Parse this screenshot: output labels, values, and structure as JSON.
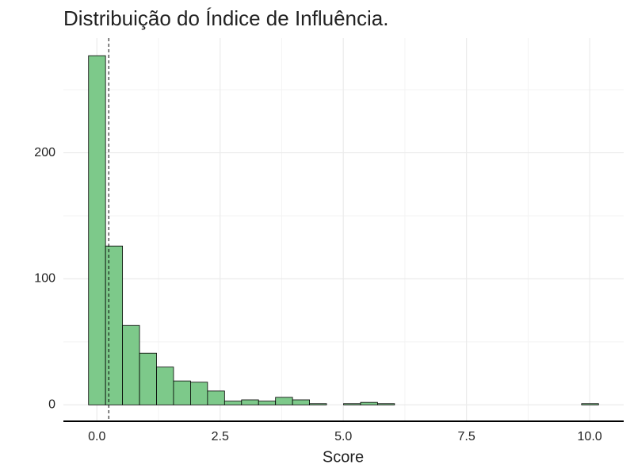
{
  "chart_data": {
    "type": "histogram",
    "title": "Distribuição do Índice de Influência.",
    "x_label": "Score",
    "bins": [
      -0.17,
      0.175,
      0.52,
      0.865,
      1.21,
      1.555,
      1.9,
      2.245,
      2.59,
      2.935,
      3.28,
      3.625,
      3.97,
      4.315,
      4.66,
      5.005,
      5.35,
      5.695,
      6.04,
      6.385,
      6.73,
      7.075,
      7.42,
      7.765,
      8.11,
      8.455,
      8.8,
      9.145,
      9.49,
      9.835,
      10.18
    ],
    "values": [
      277,
      126,
      63,
      41,
      30,
      19,
      18,
      11,
      3,
      4,
      3,
      6,
      4,
      1,
      0,
      1,
      2,
      1,
      0,
      0,
      0,
      0,
      0,
      0,
      0,
      0,
      0,
      0,
      0,
      1
    ],
    "color": "#7dc98a",
    "edge_color": "#000000",
    "vline": 0.24,
    "xlim": [
      -0.68,
      10.69
    ],
    "ylim": [
      -13,
      291
    ],
    "xticks": [
      {
        "value": 0,
        "label": "0.0"
      },
      {
        "value": 2.5,
        "label": "2.5"
      },
      {
        "value": 5,
        "label": "5.0"
      },
      {
        "value": 7.5,
        "label": "7.5"
      },
      {
        "value": 10,
        "label": "10.0"
      }
    ],
    "yticks": [
      0,
      100,
      200
    ],
    "x_minor_ticks": [
      1.25,
      3.75,
      6.25,
      8.75
    ],
    "y_minor_ticks": [
      50,
      150,
      250
    ],
    "grid": true
  }
}
